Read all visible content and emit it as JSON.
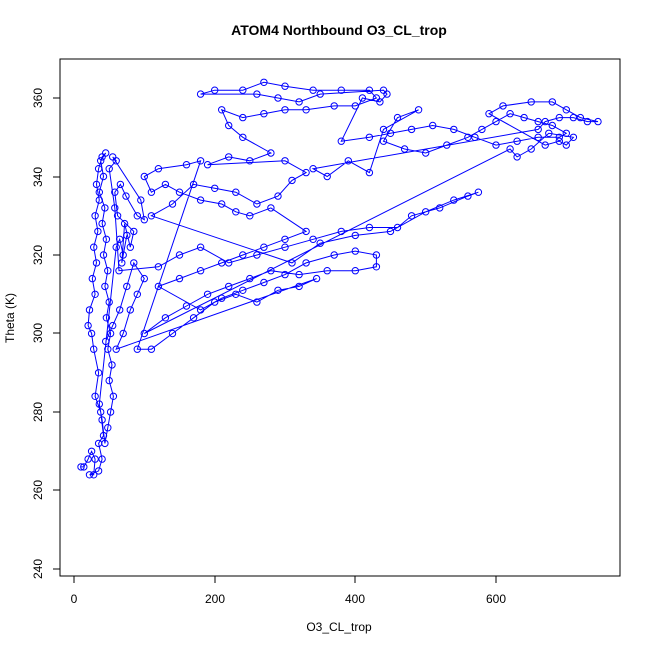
{
  "chart_data": {
    "type": "scatter",
    "title": "ATOM4 Northbound O3_CL_trop",
    "xlabel": "O3_CL_trop",
    "ylabel": "Theta (K)",
    "xlim": [
      0,
      740
    ],
    "ylim": [
      240,
      370
    ],
    "xticks": [
      "0",
      "200",
      "400",
      "600"
    ],
    "yticks": [
      "240",
      "260",
      "280",
      "300",
      "320",
      "340",
      "360"
    ],
    "legend": "none",
    "grid": false,
    "colors": {
      "series": "#0000ff",
      "axis": "#000000"
    },
    "series": [
      {
        "points": [
          [
            10,
            266
          ],
          [
            14,
            266
          ],
          [
            20,
            268
          ],
          [
            25,
            270
          ],
          [
            30,
            268
          ],
          [
            28,
            264
          ],
          [
            22,
            264
          ],
          [
            35,
            265
          ],
          [
            40,
            268
          ],
          [
            35,
            272
          ],
          [
            42,
            274
          ],
          [
            38,
            280
          ],
          [
            30,
            284
          ],
          [
            35,
            290
          ],
          [
            28,
            296
          ],
          [
            25,
            300
          ],
          [
            20,
            302
          ],
          [
            22,
            306
          ],
          [
            30,
            310
          ],
          [
            26,
            314
          ],
          [
            32,
            318
          ],
          [
            28,
            322
          ],
          [
            34,
            326
          ],
          [
            30,
            330
          ],
          [
            36,
            334
          ],
          [
            32,
            338
          ],
          [
            35,
            342
          ],
          [
            40,
            345
          ],
          [
            45,
            346
          ],
          [
            38,
            344
          ],
          [
            42,
            340
          ],
          [
            36,
            336
          ],
          [
            44,
            332
          ],
          [
            40,
            328
          ],
          [
            46,
            324
          ],
          [
            42,
            320
          ],
          [
            48,
            316
          ],
          [
            44,
            312
          ],
          [
            50,
            308
          ],
          [
            46,
            304
          ],
          [
            52,
            300
          ],
          [
            48,
            296
          ],
          [
            54,
            292
          ],
          [
            50,
            288
          ],
          [
            56,
            284
          ],
          [
            52,
            280
          ],
          [
            48,
            276
          ],
          [
            44,
            272
          ],
          [
            40,
            278
          ],
          [
            36,
            282
          ],
          [
            60,
            322
          ],
          [
            65,
            324
          ],
          [
            70,
            320
          ],
          [
            75,
            325
          ],
          [
            68,
            318
          ],
          [
            72,
            328
          ],
          [
            80,
            322
          ],
          [
            85,
            326
          ],
          [
            62,
            330
          ],
          [
            58,
            336
          ],
          [
            66,
            338
          ],
          [
            74,
            335
          ],
          [
            90,
            330
          ],
          [
            100,
            329
          ],
          [
            95,
            334
          ],
          [
            55,
            345
          ],
          [
            60,
            344
          ],
          [
            50,
            342
          ],
          [
            58,
            332
          ],
          [
            64,
            316
          ],
          [
            120,
            317
          ],
          [
            150,
            320
          ],
          [
            180,
            322
          ],
          [
            220,
            318
          ],
          [
            260,
            320
          ],
          [
            300,
            322
          ],
          [
            340,
            324
          ],
          [
            380,
            326
          ],
          [
            420,
            327
          ],
          [
            460,
            327
          ],
          [
            480,
            330
          ],
          [
            520,
            332
          ],
          [
            560,
            335
          ],
          [
            575,
            336
          ],
          [
            540,
            334
          ],
          [
            500,
            331
          ],
          [
            450,
            326
          ],
          [
            400,
            325
          ],
          [
            350,
            323
          ],
          [
            310,
            318
          ],
          [
            110,
            330
          ],
          [
            140,
            333
          ],
          [
            170,
            338
          ],
          [
            200,
            337
          ],
          [
            230,
            336
          ],
          [
            260,
            333
          ],
          [
            290,
            335
          ],
          [
            310,
            339
          ],
          [
            330,
            341
          ],
          [
            300,
            344
          ],
          [
            190,
            343
          ],
          [
            220,
            345
          ],
          [
            250,
            344
          ],
          [
            280,
            346
          ],
          [
            240,
            350
          ],
          [
            220,
            353
          ],
          [
            210,
            357
          ],
          [
            240,
            355
          ],
          [
            270,
            356
          ],
          [
            300,
            357
          ],
          [
            330,
            357
          ],
          [
            370,
            358
          ],
          [
            400,
            358
          ],
          [
            430,
            360
          ],
          [
            420,
            362
          ],
          [
            380,
            362
          ],
          [
            340,
            362
          ],
          [
            300,
            363
          ],
          [
            270,
            364
          ],
          [
            240,
            362
          ],
          [
            200,
            362
          ],
          [
            180,
            361
          ],
          [
            260,
            361
          ],
          [
            290,
            360
          ],
          [
            320,
            359
          ],
          [
            350,
            361
          ],
          [
            440,
            362
          ],
          [
            445,
            361
          ],
          [
            435,
            359
          ],
          [
            410,
            360
          ],
          [
            380,
            349
          ],
          [
            420,
            350
          ],
          [
            450,
            351
          ],
          [
            480,
            352
          ],
          [
            510,
            353
          ],
          [
            540,
            352
          ],
          [
            570,
            350
          ],
          [
            600,
            348
          ],
          [
            630,
            349
          ],
          [
            660,
            350
          ],
          [
            690,
            350
          ],
          [
            700,
            351
          ],
          [
            680,
            353
          ],
          [
            660,
            354
          ],
          [
            640,
            355
          ],
          [
            620,
            356
          ],
          [
            600,
            354
          ],
          [
            580,
            352
          ],
          [
            560,
            350
          ],
          [
            530,
            348
          ],
          [
            500,
            346
          ],
          [
            470,
            347
          ],
          [
            440,
            349
          ],
          [
            460,
            355
          ],
          [
            490,
            357
          ],
          [
            440,
            352
          ],
          [
            420,
            341
          ],
          [
            390,
            344
          ],
          [
            360,
            340
          ],
          [
            340,
            342
          ],
          [
            660,
            352
          ],
          [
            670,
            354
          ],
          [
            690,
            355
          ],
          [
            710,
            355
          ],
          [
            730,
            354
          ],
          [
            745,
            354
          ],
          [
            720,
            355
          ],
          [
            700,
            357
          ],
          [
            680,
            359
          ],
          [
            650,
            359
          ],
          [
            610,
            358
          ],
          [
            590,
            356
          ],
          [
            670,
            348
          ],
          [
            690,
            349
          ],
          [
            700,
            348
          ],
          [
            710,
            350
          ],
          [
            675,
            351
          ],
          [
            650,
            347
          ],
          [
            630,
            345
          ],
          [
            620,
            347
          ],
          [
            100,
            300
          ],
          [
            130,
            304
          ],
          [
            160,
            307
          ],
          [
            190,
            310
          ],
          [
            220,
            312
          ],
          [
            250,
            314
          ],
          [
            280,
            316
          ],
          [
            320,
            315
          ],
          [
            360,
            316
          ],
          [
            400,
            316
          ],
          [
            430,
            317
          ],
          [
            430,
            320
          ],
          [
            400,
            321
          ],
          [
            370,
            320
          ],
          [
            330,
            318
          ],
          [
            300,
            315
          ],
          [
            270,
            313
          ],
          [
            240,
            311
          ],
          [
            210,
            309
          ],
          [
            180,
            306
          ],
          [
            120,
            312
          ],
          [
            150,
            314
          ],
          [
            180,
            316
          ],
          [
            210,
            318
          ],
          [
            240,
            320
          ],
          [
            270,
            322
          ],
          [
            300,
            324
          ],
          [
            330,
            326
          ],
          [
            280,
            332
          ],
          [
            250,
            330
          ],
          [
            230,
            331
          ],
          [
            210,
            333
          ],
          [
            180,
            334
          ],
          [
            150,
            336
          ],
          [
            130,
            338
          ],
          [
            110,
            336
          ],
          [
            100,
            340
          ],
          [
            120,
            342
          ],
          [
            160,
            343
          ],
          [
            180,
            344
          ],
          [
            90,
            296
          ],
          [
            110,
            296
          ],
          [
            140,
            300
          ],
          [
            170,
            304
          ],
          [
            200,
            308
          ],
          [
            230,
            310
          ],
          [
            260,
            308
          ],
          [
            290,
            311
          ],
          [
            320,
            312
          ],
          [
            345,
            314
          ],
          [
            60,
            296
          ],
          [
            70,
            300
          ],
          [
            80,
            306
          ],
          [
            90,
            310
          ],
          [
            100,
            314
          ],
          [
            85,
            318
          ],
          [
            75,
            312
          ],
          [
            65,
            306
          ],
          [
            55,
            302
          ],
          [
            45,
            298
          ]
        ]
      }
    ]
  }
}
